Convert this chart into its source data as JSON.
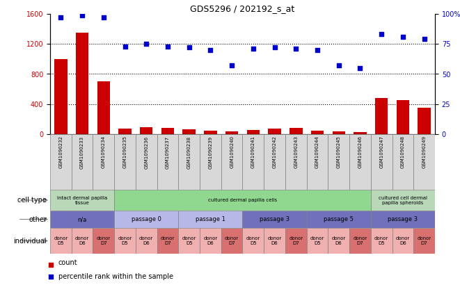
{
  "title": "GDS5296 / 202192_s_at",
  "samples": [
    "GSM1090232",
    "GSM1090233",
    "GSM1090234",
    "GSM1090235",
    "GSM1090236",
    "GSM1090237",
    "GSM1090238",
    "GSM1090239",
    "GSM1090240",
    "GSM1090241",
    "GSM1090242",
    "GSM1090243",
    "GSM1090244",
    "GSM1090245",
    "GSM1090246",
    "GSM1090247",
    "GSM1090248",
    "GSM1090249"
  ],
  "counts": [
    1000,
    1350,
    700,
    70,
    90,
    85,
    65,
    50,
    40,
    60,
    75,
    80,
    50,
    40,
    30,
    480,
    450,
    350
  ],
  "percentiles": [
    97,
    99,
    97,
    73,
    75,
    73,
    72,
    70,
    57,
    71,
    72,
    71,
    70,
    57,
    55,
    83,
    81,
    79
  ],
  "ylim_left": [
    0,
    1600
  ],
  "ylim_right": [
    0,
    100
  ],
  "yticks_left": [
    0,
    400,
    800,
    1200,
    1600
  ],
  "yticks_right": [
    0,
    25,
    50,
    75,
    100
  ],
  "ytick_labels_right": [
    "0",
    "25",
    "50",
    "75",
    "100%"
  ],
  "bar_color": "#cc0000",
  "dot_color": "#0000cc",
  "cell_type_groups": [
    {
      "label": "intact dermal papilla\ntissue",
      "start": 0,
      "end": 3,
      "color": "#b8d8b8"
    },
    {
      "label": "cultured dermal papilla cells",
      "start": 3,
      "end": 15,
      "color": "#90d890"
    },
    {
      "label": "cultured cell dermal\npapilla spheroids",
      "start": 15,
      "end": 18,
      "color": "#b8d8b8"
    }
  ],
  "other_groups": [
    {
      "label": "n/a",
      "start": 0,
      "end": 3,
      "color": "#7070bb"
    },
    {
      "label": "passage 0",
      "start": 3,
      "end": 6,
      "color": "#b8b8e8"
    },
    {
      "label": "passage 1",
      "start": 6,
      "end": 9,
      "color": "#b8b8e8"
    },
    {
      "label": "passage 3",
      "start": 9,
      "end": 12,
      "color": "#7070bb"
    },
    {
      "label": "passage 5",
      "start": 12,
      "end": 15,
      "color": "#7070bb"
    },
    {
      "label": "passage 3",
      "start": 15,
      "end": 18,
      "color": "#7070bb"
    }
  ],
  "individual_groups": [
    {
      "donor": "donor\nD5",
      "start": 0,
      "end": 1,
      "color": "#f0b0b0"
    },
    {
      "donor": "donor\nD6",
      "start": 1,
      "end": 2,
      "color": "#f0b0b0"
    },
    {
      "donor": "donor\nD7",
      "start": 2,
      "end": 3,
      "color": "#d87070"
    },
    {
      "donor": "donor\nD5",
      "start": 3,
      "end": 4,
      "color": "#f0b0b0"
    },
    {
      "donor": "donor\nD6",
      "start": 4,
      "end": 5,
      "color": "#f0b0b0"
    },
    {
      "donor": "donor\nD7",
      "start": 5,
      "end": 6,
      "color": "#d87070"
    },
    {
      "donor": "donor\nD5",
      "start": 6,
      "end": 7,
      "color": "#f0b0b0"
    },
    {
      "donor": "donor\nD6",
      "start": 7,
      "end": 8,
      "color": "#f0b0b0"
    },
    {
      "donor": "donor\nD7",
      "start": 8,
      "end": 9,
      "color": "#d87070"
    },
    {
      "donor": "donor\nD5",
      "start": 9,
      "end": 10,
      "color": "#f0b0b0"
    },
    {
      "donor": "donor\nD6",
      "start": 10,
      "end": 11,
      "color": "#f0b0b0"
    },
    {
      "donor": "donor\nD7",
      "start": 11,
      "end": 12,
      "color": "#d87070"
    },
    {
      "donor": "donor\nD5",
      "start": 12,
      "end": 13,
      "color": "#f0b0b0"
    },
    {
      "donor": "donor\nD6",
      "start": 13,
      "end": 14,
      "color": "#f0b0b0"
    },
    {
      "donor": "donor\nD7",
      "start": 14,
      "end": 15,
      "color": "#d87070"
    },
    {
      "donor": "donor\nD5",
      "start": 15,
      "end": 16,
      "color": "#f0b0b0"
    },
    {
      "donor": "donor\nD6",
      "start": 16,
      "end": 17,
      "color": "#f0b0b0"
    },
    {
      "donor": "donor\nD7",
      "start": 17,
      "end": 18,
      "color": "#d87070"
    }
  ],
  "legend_count_label": "count",
  "legend_pct_label": "percentile rank within the sample",
  "row_labels": [
    "cell type",
    "other",
    "individual"
  ],
  "tick_label_fontsize": 7,
  "sample_fontsize": 5.5,
  "row_fontsize": 6
}
